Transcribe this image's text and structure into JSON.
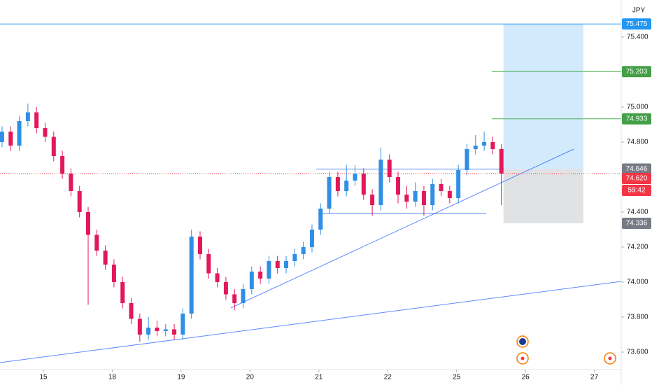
{
  "chart_data": {
    "type": "candlestick",
    "currency": "JPY",
    "x": [
      -0.6,
      -0.475,
      -0.35,
      -0.225,
      -0.1,
      0.025,
      0.15,
      0.275,
      0.4,
      0.525,
      0.65,
      0.775,
      0.9,
      1.025,
      1.15,
      1.275,
      1.4,
      1.525,
      1.65,
      1.775,
      1.9,
      2.025,
      2.15,
      2.275,
      2.4,
      2.525,
      2.65,
      2.775,
      2.9,
      3.025,
      3.15,
      3.275,
      3.4,
      3.525,
      3.65,
      3.775,
      3.9,
      4.025,
      4.15,
      4.275,
      4.4,
      4.525,
      4.65,
      4.775,
      4.9,
      5.025,
      5.15,
      5.275,
      5.4,
      5.525,
      5.65,
      5.775,
      5.9,
      6.025,
      6.15,
      6.275,
      6.4,
      6.525,
      6.65
    ],
    "open": [
      74.8,
      74.86,
      74.78,
      74.92,
      74.97,
      74.88,
      74.83,
      74.72,
      74.62,
      74.52,
      74.4,
      74.27,
      74.18,
      74.1,
      74.0,
      73.88,
      73.79,
      73.7,
      73.74,
      73.72,
      73.73,
      73.7,
      73.82,
      74.26,
      74.16,
      74.05,
      74.0,
      73.93,
      73.88,
      73.96,
      74.06,
      74.02,
      74.12,
      74.08,
      74.12,
      74.16,
      74.2,
      74.3,
      74.42,
      74.6,
      74.52,
      74.58,
      74.62,
      74.5,
      74.44,
      74.7,
      74.6,
      74.5,
      74.46,
      74.52,
      74.44,
      74.56,
      74.52,
      74.48,
      74.64,
      74.76,
      74.78,
      74.8,
      74.76
    ],
    "high": [
      74.89,
      74.89,
      74.95,
      75.02,
      75.0,
      74.91,
      74.86,
      74.75,
      74.65,
      74.55,
      74.43,
      74.3,
      74.21,
      74.13,
      74.03,
      73.91,
      73.82,
      73.8,
      73.78,
      73.76,
      73.76,
      73.85,
      74.3,
      74.29,
      74.19,
      74.08,
      74.03,
      73.96,
      73.99,
      74.09,
      74.09,
      74.15,
      74.15,
      74.15,
      74.19,
      74.23,
      74.33,
      74.45,
      74.63,
      74.63,
      74.67,
      74.67,
      74.65,
      74.53,
      74.77,
      74.73,
      74.63,
      74.55,
      74.57,
      74.55,
      74.59,
      74.59,
      74.55,
      74.67,
      74.79,
      74.84,
      74.86,
      74.83,
      74.79
    ],
    "low": [
      74.77,
      74.75,
      74.75,
      74.89,
      74.85,
      74.8,
      74.69,
      74.59,
      74.49,
      74.37,
      73.87,
      74.15,
      74.07,
      73.97,
      73.85,
      73.76,
      73.66,
      73.67,
      73.69,
      73.69,
      73.67,
      73.67,
      73.79,
      74.13,
      74.02,
      73.97,
      73.9,
      73.84,
      73.85,
      73.93,
      73.99,
      73.99,
      74.05,
      74.05,
      74.09,
      74.13,
      74.17,
      74.27,
      74.39,
      74.49,
      74.49,
      74.55,
      74.47,
      74.38,
      74.41,
      74.57,
      74.45,
      74.42,
      74.43,
      74.38,
      74.41,
      74.49,
      74.45,
      74.45,
      74.61,
      74.73,
      74.75,
      74.73,
      74.44
    ],
    "close": [
      74.86,
      74.78,
      74.92,
      74.97,
      74.88,
      74.83,
      74.72,
      74.62,
      74.52,
      74.4,
      74.27,
      74.18,
      74.1,
      74.0,
      73.88,
      73.79,
      73.7,
      73.74,
      73.72,
      73.73,
      73.7,
      73.82,
      74.26,
      74.16,
      74.05,
      74.0,
      73.93,
      73.88,
      73.96,
      74.06,
      74.02,
      74.12,
      74.08,
      74.12,
      74.16,
      74.2,
      74.3,
      74.42,
      74.6,
      74.52,
      74.58,
      74.62,
      74.5,
      74.44,
      74.7,
      74.6,
      74.5,
      74.46,
      74.52,
      74.44,
      74.56,
      74.52,
      74.48,
      74.64,
      74.76,
      74.78,
      74.8,
      74.76,
      74.62
    ],
    "up_color": "#2f8fe6",
    "down_color": "#e3185b",
    "xlim": [
      -0.63,
      8.39
    ],
    "xticks": [
      {
        "value": 0,
        "label": "15"
      },
      {
        "value": 1,
        "label": "18"
      },
      {
        "value": 2,
        "label": "19"
      },
      {
        "value": 3,
        "label": "20"
      },
      {
        "value": 4,
        "label": "21"
      },
      {
        "value": 5,
        "label": "22"
      },
      {
        "value": 6,
        "label": "25"
      },
      {
        "value": 7,
        "label": "26"
      },
      {
        "value": 8,
        "label": "27"
      }
    ],
    "ylim": [
      73.492,
      75.612
    ],
    "yticks": [
      {
        "value": 75.4,
        "label": "75.400"
      },
      {
        "value": 75,
        "label": "75.000"
      },
      {
        "value": 74.8,
        "label": "74.800"
      },
      {
        "value": 74.4,
        "label": "74.400"
      },
      {
        "value": 74.2,
        "label": "74.200"
      },
      {
        "value": 74,
        "label": "74.000"
      },
      {
        "value": 73.8,
        "label": "73.800"
      },
      {
        "value": 73.6,
        "label": "73.600"
      }
    ],
    "position": {
      "x": [
        6.68,
        7.84
      ],
      "target": {
        "value": 75.475,
        "label": "75.475"
      },
      "entry": {
        "value": 74.646,
        "label": "74.646"
      },
      "stop": {
        "value": 74.336,
        "label": "74.336"
      }
    },
    "targets": [
      {
        "value": 75.203,
        "label": "75.203"
      },
      {
        "value": 74.933,
        "label": "74.933"
      }
    ],
    "targets_from": 6.51,
    "last_price": {
      "value": 74.62,
      "label": "74.620"
    },
    "countdown": "59:42",
    "support_lines": [
      {
        "value": 74.646,
        "x": [
          3.96,
          6.69
        ]
      },
      {
        "value": 74.392,
        "x": [
          3.99,
          6.43
        ]
      }
    ],
    "trendlines": [
      {
        "x": [
          2.72,
          7.7
        ],
        "y": [
          73.852,
          74.76
        ]
      },
      {
        "x": [
          -0.63,
          8.39
        ],
        "y": [
          73.54,
          74.004
        ]
      }
    ]
  }
}
